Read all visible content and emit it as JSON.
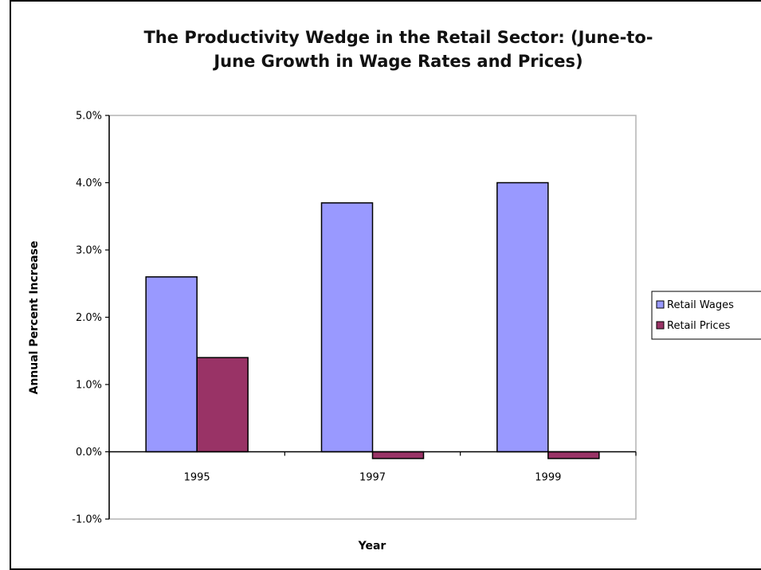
{
  "chart_data": {
    "type": "bar",
    "title_lines": [
      "The Productivity Wedge in the Retail Sector: (June-to-",
      "June Growth in Wage Rates and Prices)"
    ],
    "xlabel": "Year",
    "ylabel": "Annual Percent Increase",
    "categories": [
      "1995",
      "1997",
      "1999"
    ],
    "series": [
      {
        "name": "Retail Wages",
        "values": [
          2.6,
          3.7,
          4.0
        ],
        "color": "#9999ff"
      },
      {
        "name": "Retail Prices",
        "values": [
          1.4,
          -0.1,
          -0.1
        ],
        "color": "#993366"
      }
    ],
    "ylim": [
      -1.0,
      5.0
    ],
    "yticks": [
      -1.0,
      0.0,
      1.0,
      2.0,
      3.0,
      4.0,
      5.0
    ],
    "ytick_labels": [
      "-1.0%",
      "0.0%",
      "1.0%",
      "2.0%",
      "3.0%",
      "4.0%",
      "5.0%"
    ],
    "grid": false,
    "legend_position": "right"
  }
}
